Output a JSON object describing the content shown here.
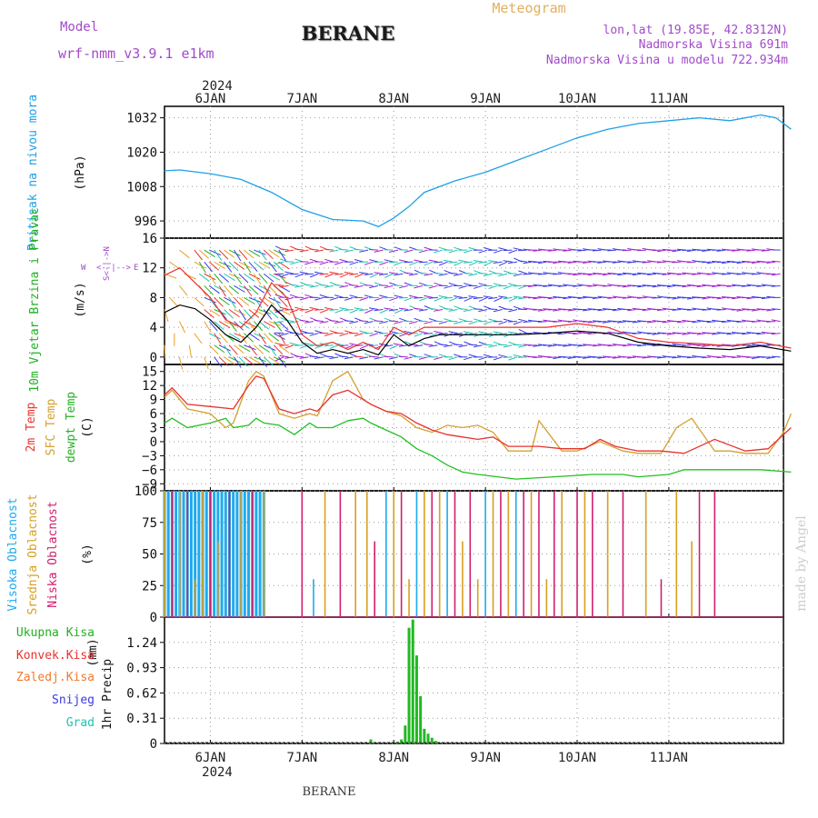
{
  "header": {
    "model_label": "Model",
    "model_value": "wrf-nmm_v3.9.1  e1km",
    "station": "BERANE",
    "meteogram": "Meteogram",
    "lonlat": "lon,lat (19.85E, 42.8312N)",
    "altitude": "Nadmorska Visina 691m",
    "model_altitude": "Nadmorska Visina u modelu 722.934m"
  },
  "footer": {
    "station": "BERANE",
    "watermark": "made by Angel"
  },
  "colors": {
    "pressure": "#1ea0e6",
    "temp2m": "#e8322e",
    "sfc": "#d4a030",
    "dew": "#22c022",
    "high": "#1eaaee",
    "mid": "#d8a020",
    "low": "#d0206e",
    "precip": "#22b822"
  },
  "days": {
    "labels": [
      "6JAN",
      "7JAN",
      "8JAN",
      "9JAN",
      "10JAN",
      "11JAN"
    ],
    "year": "2024"
  },
  "chart_data": [
    {
      "type": "line",
      "ylabel": "Pritisak na nivou mora",
      "unit": "(hPa)",
      "ylim": [
        990,
        1036
      ],
      "yticks": [
        996,
        1008,
        1020,
        1032
      ],
      "x_unit": "hours since 6JAN 00UTC",
      "series": [
        {
          "name": "Pritisak na nivou mora",
          "x": [
            -12,
            -8,
            0,
            8,
            16,
            24,
            32,
            40,
            44,
            48,
            52,
            56,
            64,
            72,
            80,
            88,
            96,
            104,
            112,
            120,
            128,
            136,
            144,
            148,
            152
          ],
          "values": [
            1013.5,
            1013.8,
            1012.5,
            1010.5,
            1006,
            1000,
            996.5,
            996,
            994,
            997,
            1001,
            1006,
            1010,
            1013,
            1017,
            1021,
            1025,
            1028,
            1030,
            1031,
            1032,
            1031,
            1033,
            1032,
            1028
          ]
        }
      ]
    },
    {
      "type": "line",
      "ylabel": "10m Vjetar Brzina i Pravac",
      "unit": "(m/s)",
      "ylim": [
        -1,
        16
      ],
      "yticks": [
        0,
        4,
        8,
        12,
        16
      ],
      "compass": [
        "N",
        "E",
        "S",
        "W"
      ],
      "series": [
        {
          "name": "speed",
          "x": [
            -12,
            -8,
            -4,
            0,
            4,
            8,
            12,
            16,
            20,
            24,
            28,
            32,
            36,
            40,
            44,
            48,
            52,
            56,
            60,
            64,
            68,
            72,
            80,
            88,
            96,
            104,
            112,
            120,
            128,
            136,
            144,
            152
          ],
          "values": [
            6,
            7,
            6.5,
            5,
            3,
            2,
            4,
            7,
            5,
            2,
            0.5,
            1,
            0.5,
            1,
            0.3,
            3,
            1.5,
            2.5,
            3,
            3,
            3,
            3,
            3,
            3.2,
            3.5,
            3.2,
            2,
            1.5,
            1.2,
            1,
            1.5,
            0.8
          ]
        },
        {
          "name": "gust",
          "x": [
            -12,
            -8,
            -4,
            0,
            4,
            8,
            12,
            16,
            20,
            24,
            28,
            32,
            36,
            40,
            44,
            48,
            52,
            56,
            60,
            64,
            72,
            80,
            88,
            96,
            104,
            112,
            120,
            128,
            136,
            144,
            152
          ],
          "values": [
            11,
            12,
            10,
            8,
            5,
            4,
            6,
            10,
            8,
            3,
            1.5,
            2,
            1,
            2,
            1,
            4,
            3,
            4,
            4,
            4,
            4,
            4,
            4,
            4.5,
            4,
            2.5,
            2,
            1.8,
            1.5,
            2,
            1.2
          ]
        }
      ]
    },
    {
      "type": "line",
      "ylabel": "2m Temp / SFC Temp / dewpt Temp",
      "unit": "(C)",
      "ylim": [
        -10.5,
        16.5
      ],
      "yticks": [
        -9,
        -6,
        -3,
        0,
        3,
        6,
        9,
        12,
        15
      ],
      "series": [
        {
          "name": "2m Temp",
          "x": [
            -12,
            -10,
            -6,
            0,
            6,
            10,
            12,
            14,
            18,
            22,
            26,
            28,
            32,
            36,
            40,
            42,
            46,
            50,
            54,
            58,
            62,
            66,
            70,
            74,
            78,
            86,
            92,
            98,
            102,
            106,
            112,
            118,
            124,
            132,
            140,
            146,
            152
          ],
          "values": [
            10,
            11.5,
            8,
            7.5,
            7,
            12,
            14,
            13.5,
            7,
            6,
            7,
            6.5,
            10,
            11,
            9,
            8,
            6.5,
            6,
            4,
            2.5,
            1.5,
            1,
            0.5,
            1,
            -1,
            -1,
            -1.5,
            -1.5,
            0.5,
            -1,
            -2,
            -2,
            -2.5,
            0.5,
            -2,
            -1.5,
            3
          ]
        },
        {
          "name": "SFC Temp",
          "x": [
            -12,
            -10,
            -6,
            0,
            4,
            6,
            10,
            12,
            14,
            18,
            22,
            26,
            28,
            32,
            36,
            40,
            42,
            46,
            50,
            54,
            58,
            62,
            66,
            70,
            74,
            78,
            84,
            86,
            92,
            96,
            102,
            108,
            112,
            118,
            122,
            126,
            132,
            136,
            140,
            146,
            150,
            152
          ],
          "values": [
            9.5,
            11,
            7,
            6,
            3,
            4,
            13,
            15,
            14,
            6,
            5,
            6,
            5.5,
            13,
            15,
            9,
            8,
            6.5,
            5.5,
            3,
            2,
            3.5,
            3,
            3.5,
            2,
            -2,
            -2,
            4.5,
            -2,
            -2,
            0,
            -2,
            -2.5,
            -2.5,
            3,
            5,
            -2,
            -2,
            -2.5,
            -2.5,
            2,
            6
          ]
        },
        {
          "name": "dewpt Temp",
          "x": [
            -12,
            -10,
            -6,
            0,
            4,
            6,
            10,
            12,
            14,
            18,
            22,
            26,
            28,
            32,
            36,
            40,
            42,
            46,
            50,
            54,
            58,
            62,
            66,
            70,
            80,
            90,
            100,
            108,
            112,
            120,
            124,
            130,
            136,
            144,
            152
          ],
          "values": [
            4,
            5,
            3,
            4,
            5,
            3,
            3.5,
            5,
            4,
            3.5,
            1.5,
            4,
            3,
            3,
            4.5,
            5,
            4,
            2.5,
            1,
            -1.5,
            -3,
            -5,
            -6.5,
            -7,
            -8,
            -7.5,
            -7,
            -7,
            -7.5,
            -7,
            -6,
            -6,
            -6,
            -6,
            -6.5
          ]
        }
      ]
    },
    {
      "type": "bar",
      "ylabel": "Visoka Oblacnost / Srednja Oblacnost / Niska Oblacnost",
      "unit": "(%)",
      "ylim": [
        0,
        100
      ],
      "yticks": [
        0,
        25,
        50,
        75,
        100
      ],
      "series": [
        {
          "name": "Visoka Oblacnost",
          "note": "high cloud ~100% from 5JAN 12UTC to 6JAN 14UTC, intermittent later"
        },
        {
          "name": "Srednja Oblacnost",
          "note": "mid cloud intermittent 100% bars through 10JAN"
        },
        {
          "name": "Niska Oblacnost",
          "note": "low cloud intermittent bars through 10JAN"
        }
      ]
    },
    {
      "type": "bar",
      "ylabel": "1hr Precip",
      "unit": "(mm)",
      "ylim": [
        0,
        1.55
      ],
      "yticks": [
        0,
        0.31,
        0.62,
        0.93,
        1.24
      ],
      "legend": [
        "Ukupna Kisa",
        "Konvek.Kisa",
        "Zaledj.Kisa",
        "Snijeg",
        "Grad"
      ],
      "x": [
        30,
        42,
        49,
        50,
        51,
        52,
        53,
        54,
        55,
        56,
        57,
        58,
        59
      ],
      "values": [
        0.02,
        0.05,
        0.02,
        0.05,
        0.22,
        1.42,
        1.52,
        1.08,
        0.58,
        0.18,
        0.12,
        0.07,
        0.03
      ]
    }
  ]
}
